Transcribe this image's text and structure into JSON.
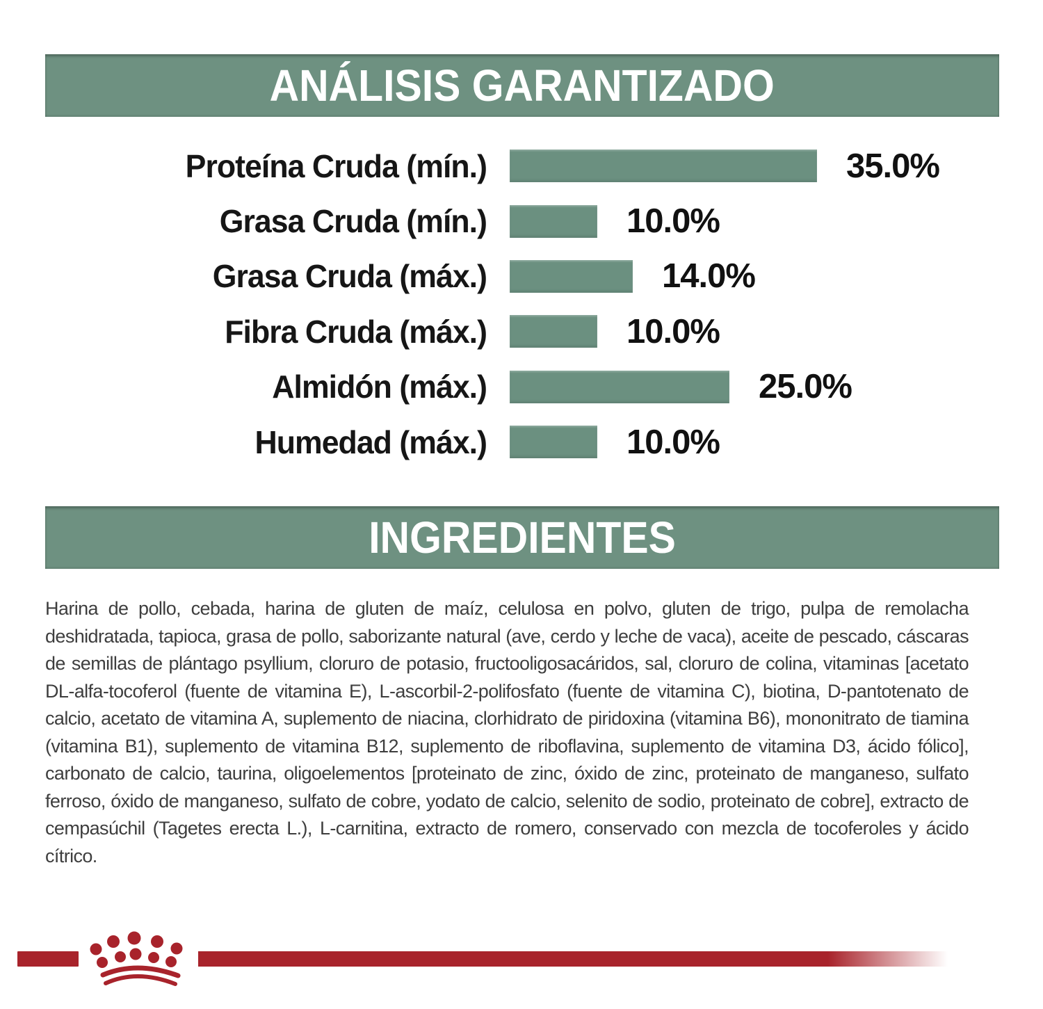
{
  "colors": {
    "header_green": "#6e9181",
    "bar_green": "#6b9080",
    "brand_red": "#a8232b",
    "label_text": "#161616",
    "body_text": "#3e3e3e",
    "header_text": "#ffffff"
  },
  "analysis_section": {
    "title": "ANÁLISIS GARANTIZADO"
  },
  "chart_data": {
    "type": "bar",
    "orientation": "horizontal",
    "title": "ANÁLISIS GARANTIZADO",
    "categories": [
      "Proteína Cruda (mín.)",
      "Grasa Cruda (mín.)",
      "Grasa Cruda (máx.)",
      "Fibra Cruda (máx.)",
      "Almidón (máx.)",
      "Humedad (máx.)"
    ],
    "values": [
      35.0,
      10.0,
      14.0,
      10.0,
      25.0,
      10.0
    ],
    "value_labels": [
      "35.0%",
      "10.0%",
      "14.0%",
      "10.0%",
      "25.0%",
      "10.0%"
    ],
    "unit": "%",
    "xlim": [
      0,
      35
    ],
    "bar_color": "#6b9080",
    "grid": false,
    "legend": false
  },
  "ingredients_section": {
    "title": "INGREDIENTES",
    "text": "Harina de pollo, cebada, harina de gluten de maíz, celulosa en polvo, gluten de trigo, pulpa de remolacha deshidratada, tapioca, grasa de pollo, saborizante natural (ave, cerdo y leche de vaca), aceite de pescado, cáscaras de semillas de plántago psyllium, cloruro de potasio, fructooligosacáridos, sal, cloruro de colina, vitaminas [acetato DL-alfa-tocoferol (fuente de vitamina E), L-ascorbil-2-polifosfato (fuente de vitamina C), biotina, D-pantotenato de calcio, acetato de vitamina A, suplemento de niacina, clorhidrato de piridoxina (vitamina B6), mononitrato de tiamina (vitamina B1), suplemento de vitamina B12, suplemento de riboflavina, suplemento de vitamina D3, ácido fólico], carbonato de calcio, taurina, oligoelementos [proteinato de zinc, óxido de zinc, proteinato de manganeso, sulfato ferroso, óxido de manganeso, sulfato de cobre, yodato de calcio, selenito de sodio, proteinato de cobre], extracto de cempasúchil (Tagetes erecta L.), L-carnitina, extracto de romero, conservado con mezcla de tocoferoles y ácido cítrico."
  },
  "footer": {
    "logo": "royal-canin-crown"
  }
}
